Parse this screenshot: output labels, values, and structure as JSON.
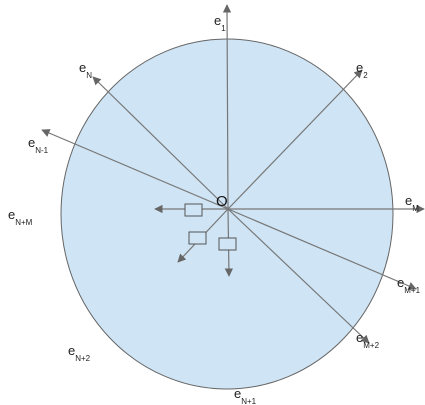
{
  "origin_label": "O",
  "colors": {
    "circle_fill": "#cfe4f4",
    "circle_stroke": "#666666",
    "axis": "#777777"
  },
  "vectors": [
    {
      "id": "e1",
      "main": "e",
      "sub": "1"
    },
    {
      "id": "e2",
      "main": "e",
      "sub": "2"
    },
    {
      "id": "eM",
      "main": "e",
      "sub": "M"
    },
    {
      "id": "eM1",
      "main": "e",
      "sub": "M+1"
    },
    {
      "id": "eM2",
      "main": "e",
      "sub": "M+2"
    },
    {
      "id": "eN1",
      "main": "e",
      "sub": "N+1"
    },
    {
      "id": "eN2",
      "main": "e",
      "sub": "N+2"
    },
    {
      "id": "eNM",
      "main": "e",
      "sub": "N+M"
    },
    {
      "id": "eNm1",
      "main": "e",
      "sub": "N-1"
    },
    {
      "id": "eN",
      "main": "e",
      "sub": "N"
    }
  ]
}
